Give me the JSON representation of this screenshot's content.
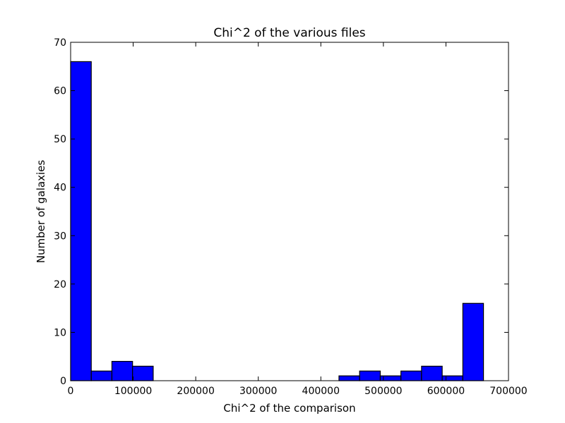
{
  "chart_data": {
    "type": "bar",
    "title": "Chi^2 of the various files",
    "xlabel": "Chi^2 of the comparison",
    "ylabel": "Number of galaxies",
    "xlim": [
      0,
      700000
    ],
    "ylim": [
      0,
      70
    ],
    "x_ticks": [
      0,
      100000,
      200000,
      300000,
      400000,
      500000,
      600000,
      700000
    ],
    "y_ticks": [
      0,
      10,
      20,
      30,
      40,
      50,
      60,
      70
    ],
    "bin_width": 33000,
    "bins": [
      {
        "x0": 0,
        "x1": 33000,
        "count": 66
      },
      {
        "x0": 33000,
        "x1": 66000,
        "count": 2
      },
      {
        "x0": 66000,
        "x1": 99000,
        "count": 4
      },
      {
        "x0": 99000,
        "x1": 132000,
        "count": 3
      },
      {
        "x0": 132000,
        "x1": 165000,
        "count": 0
      },
      {
        "x0": 165000,
        "x1": 198000,
        "count": 0
      },
      {
        "x0": 198000,
        "x1": 231000,
        "count": 0
      },
      {
        "x0": 231000,
        "x1": 264000,
        "count": 0
      },
      {
        "x0": 264000,
        "x1": 297000,
        "count": 0
      },
      {
        "x0": 297000,
        "x1": 330000,
        "count": 0
      },
      {
        "x0": 330000,
        "x1": 363000,
        "count": 0
      },
      {
        "x0": 363000,
        "x1": 396000,
        "count": 0
      },
      {
        "x0": 396000,
        "x1": 429000,
        "count": 0
      },
      {
        "x0": 429000,
        "x1": 462000,
        "count": 1
      },
      {
        "x0": 462000,
        "x1": 495000,
        "count": 2
      },
      {
        "x0": 495000,
        "x1": 528000,
        "count": 1
      },
      {
        "x0": 528000,
        "x1": 561000,
        "count": 2
      },
      {
        "x0": 561000,
        "x1": 594000,
        "count": 3
      },
      {
        "x0": 594000,
        "x1": 627000,
        "count": 1
      },
      {
        "x0": 627000,
        "x1": 660000,
        "count": 16
      }
    ],
    "bar_color": "#0000ff",
    "edge_color": "#000000",
    "grid": false,
    "legend": "none"
  }
}
